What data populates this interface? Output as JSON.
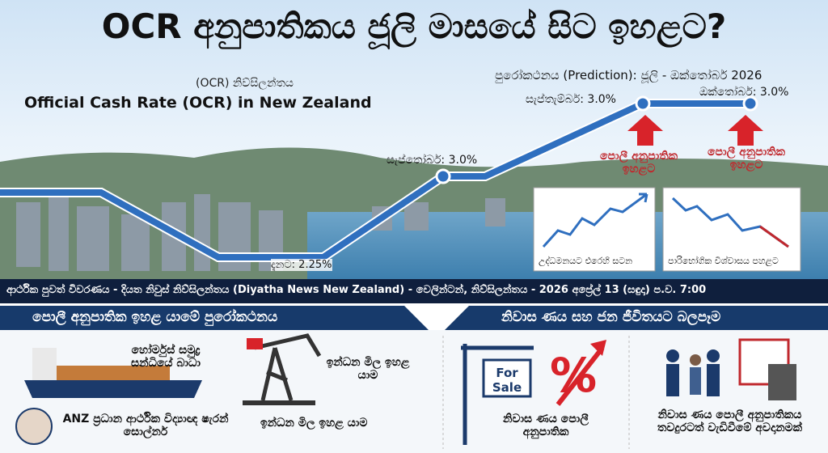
{
  "header": {
    "title": "OCR අනුපාතිකය ජූලි මාසයේ සිට ඉහළට?",
    "subtitle_si": "(OCR) නිව්සිලන්තය",
    "subtitle_en": "Official Cash Rate (OCR) in New Zealand",
    "prediction": "පුරෝකථනය (Prediction): ජූලි - ඔක්තෝබර් 2026"
  },
  "chart": {
    "labels": [
      "දැනට: 2.25%",
      "සැප්තෝබර්: 3.0%",
      "සැප්තැම්බර්: 3.0%",
      "ඔක්තෝබර්: 3.0%"
    ],
    "arrows": [
      "පොලී අනුපාතික ඉහළට",
      "පොලී අනුපාතික ඉහළට"
    ],
    "mini_charts": [
      "උද්ධමනයට එරෙහි සටන",
      "පාරිභෝගික විශ්වාසය පහළට"
    ]
  },
  "banner": "ආර්ථික පුවත් විවරණය - දියත නිවුස් නිව්සිලන්තය (Diyatha News New Zealand) - වෙලින්ටන්, නිව්සිලන්තය - 2026 අප්‍රේල් 13 (සඳුදා) ප.ව. 7:00",
  "left": {
    "heading": "පොලී අනුපාතික ඉහළ යාමේ පුරෝකථනය",
    "items": [
      "හෝර්මුස් සමුද්‍ර සන්ධියේ බාධා",
      "ඉන්ධන මිල ඉහළ යාම",
      "ඉන්ධන මිල ඉහළ යාම",
      "ANZ ප්‍රධාන ආර්ථික විද්‍යාඥ ෂැරන් සොල්නර්"
    ]
  },
  "right": {
    "heading": "නිවාස ණය සහ ජන ජීවිතයට බලපෑම",
    "sign": "For Sale",
    "percent": "%",
    "items": [
      "නිවාස ණය පොලී අනුපාතික",
      "නිවාස ණය පොලී අනුපාතිකය තවදුරටත් වැඩිවීමේ අවදානමක්"
    ]
  }
}
